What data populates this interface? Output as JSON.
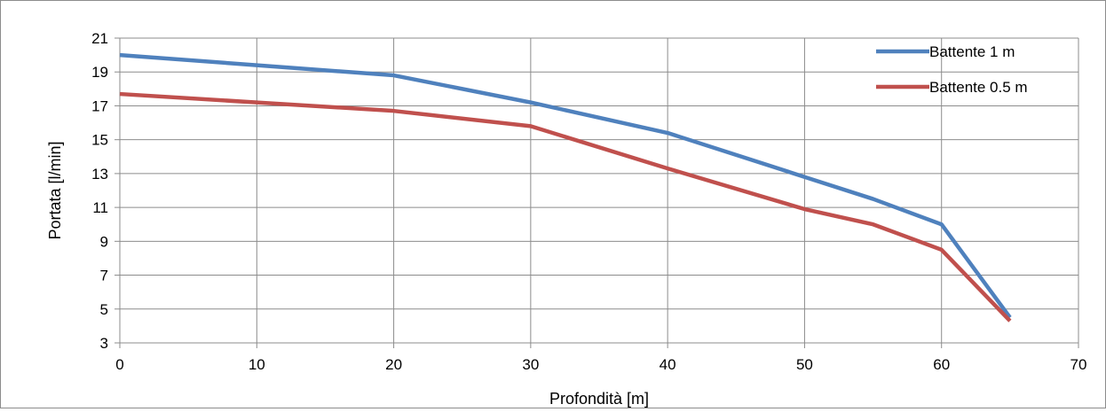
{
  "chart_data": {
    "type": "line",
    "xlabel": "Profondità [m]",
    "ylabel": "Portata [l/min]",
    "xlim": [
      0,
      70
    ],
    "ylim": [
      3,
      21
    ],
    "xticks": [
      0,
      10,
      20,
      30,
      40,
      50,
      60,
      70
    ],
    "yticks": [
      3,
      5,
      7,
      9,
      11,
      13,
      15,
      17,
      19,
      21
    ],
    "xtick_labels": [
      "0",
      "10",
      "20",
      "30",
      "40",
      "50",
      "60",
      "70"
    ],
    "ytick_labels": [
      "3",
      "5",
      "7",
      "9",
      "11",
      "13",
      "15",
      "17",
      "19",
      "21"
    ],
    "grid": true,
    "legend_position": "top-right",
    "series": [
      {
        "name": "Battente 1 m",
        "color": "#4f81bd",
        "x": [
          0,
          10,
          20,
          30,
          40,
          50,
          55,
          60,
          65
        ],
        "y": [
          20.0,
          19.4,
          18.8,
          17.2,
          15.4,
          12.8,
          11.5,
          10.0,
          4.5
        ]
      },
      {
        "name": "Battente 0.5 m",
        "color": "#c0504d",
        "x": [
          0,
          10,
          20,
          30,
          40,
          50,
          55,
          60,
          65
        ],
        "y": [
          17.7,
          17.2,
          16.7,
          15.8,
          13.3,
          10.9,
          10.0,
          8.5,
          4.3
        ]
      }
    ]
  }
}
